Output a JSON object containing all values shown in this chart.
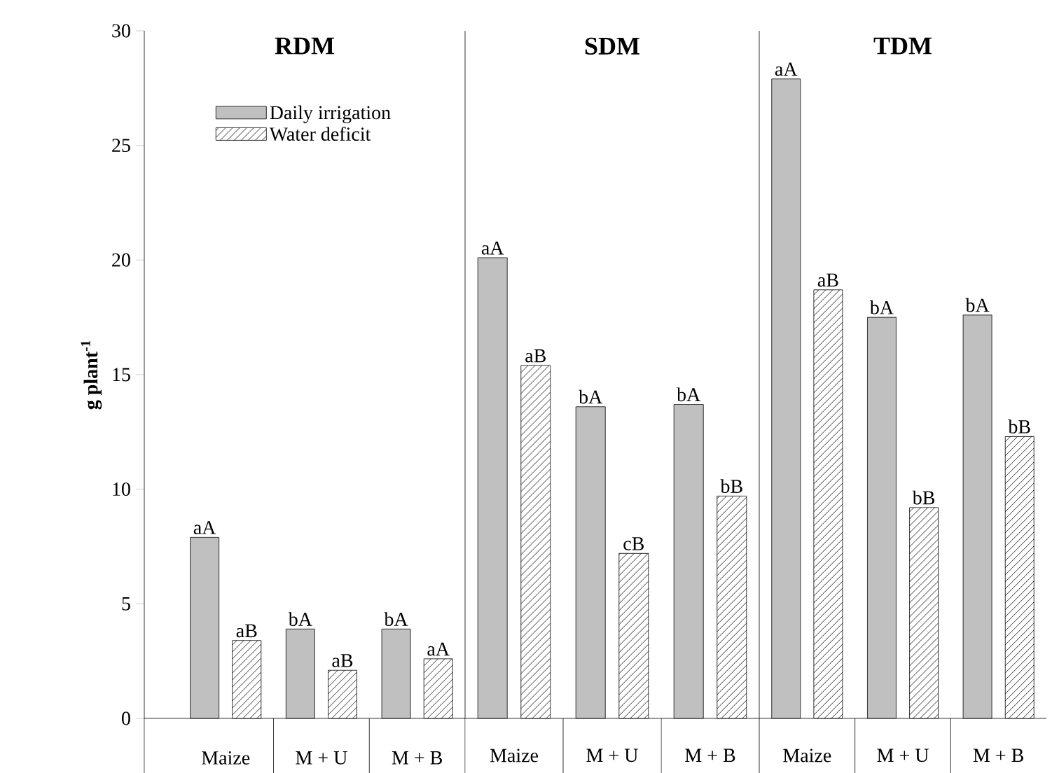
{
  "chart_data": [
    {
      "type": "bar",
      "title": "RDM",
      "ylabel": "g plant$^{-1}$",
      "categories": [
        "Maize",
        "M + U",
        "M + B"
      ],
      "ylim": [
        0,
        30
      ],
      "yticks": [
        0,
        5,
        10,
        15,
        20,
        25,
        30
      ],
      "legend": "top",
      "series": [
        {
          "name": "Daily irrigation",
          "color": "#c0c0c0",
          "values": [
            7.9,
            3.9,
            3.9
          ],
          "value_labels": [
            "aA",
            "bA",
            "bA"
          ]
        },
        {
          "name": "Water deficit",
          "color": "#ffffff",
          "values": [
            3.4,
            2.1,
            2.6
          ],
          "value_labels": [
            "aB",
            "aB",
            "aA"
          ]
        }
      ]
    },
    {
      "type": "bar",
      "title": "SDM",
      "categories": [
        "Maize",
        "M + U",
        "M + B"
      ],
      "ylim": [
        0,
        30
      ],
      "tick_labels": "x",
      "series": [
        {
          "color": "#c0c0c0",
          "values": [
            20.1,
            13.6,
            13.7
          ],
          "value_labels": [
            "aA",
            "bA",
            "bA"
          ]
        },
        {
          "color": "#ffffff",
          "values": [
            15.4,
            7.2,
            9.7
          ],
          "value_labels": [
            "aB",
            "cB",
            "bB"
          ]
        }
      ]
    },
    {
      "type": "bar",
      "title": "TDM",
      "categories": [
        "Maize",
        "M + U",
        "M + B"
      ],
      "ylim": [
        0,
        30
      ],
      "tick_labels": "x",
      "series": [
        {
          "color": "#c0c0c0",
          "values": [
            27.9,
            17.5,
            17.6
          ],
          "value_labels": [
            "aA",
            "bA",
            "bA"
          ]
        },
        {
          "color": "#ffffff",
          "values": [
            18.7,
            9.2,
            12.3
          ],
          "value_labels": [
            "aB",
            "bB",
            "bB"
          ]
        }
      ]
    }
  ]
}
